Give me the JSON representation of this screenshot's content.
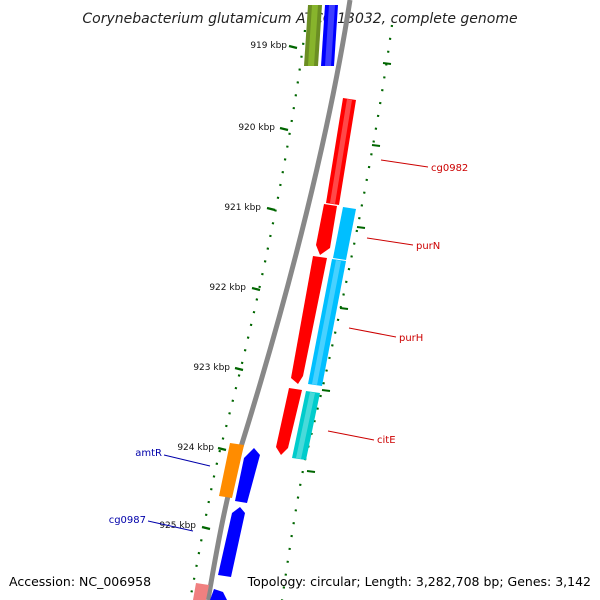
{
  "title": "Corynebacterium glutamicum ATCC 13032, complete genome",
  "footer": {
    "accession": "Accession: NC_006958",
    "topology": "Topology: circular; Length: 3,282,708 bp; Genes: 3,142"
  },
  "ticks": [
    {
      "label": "919 kbp",
      "kbp": 919
    },
    {
      "label": "920 kbp",
      "kbp": 920
    },
    {
      "label": "921 kbp",
      "kbp": 921
    },
    {
      "label": "922 kbp",
      "kbp": 922
    },
    {
      "label": "923 kbp",
      "kbp": 923
    },
    {
      "label": "924 kbp",
      "kbp": 924
    },
    {
      "label": "925 kbp",
      "kbp": 925
    }
  ],
  "genes": [
    {
      "name": "cg0982",
      "strand": "forward",
      "color": "#ff0000"
    },
    {
      "name": "purN",
      "strand": "forward",
      "color": "#ff0000"
    },
    {
      "name": "purH",
      "strand": "forward",
      "color": "#ff0000"
    },
    {
      "name": "citE",
      "strand": "forward",
      "color": "#ff0000"
    },
    {
      "name": "amtR",
      "strand": "reverse",
      "color": "#0000ff"
    },
    {
      "name": "cg0987",
      "strand": "reverse",
      "color": "#0000ff"
    }
  ],
  "colors": {
    "backbone": "#888888",
    "tick": "#006600",
    "cds_forward": "#ff0000",
    "cds_reverse": "#0000ff",
    "feature_cyan": "#00bfff",
    "feature_teal": "#00cccc",
    "feature_orange": "#ff8c00",
    "feature_olive": "#6b8e23",
    "feature_pink": "#f08080"
  }
}
